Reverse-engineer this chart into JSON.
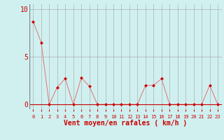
{
  "x": [
    0,
    1,
    2,
    3,
    4,
    5,
    6,
    7,
    8,
    9,
    10,
    11,
    12,
    13,
    14,
    15,
    16,
    17,
    18,
    19,
    20,
    21,
    22,
    23
  ],
  "y": [
    8.7,
    6.5,
    0.0,
    1.8,
    2.7,
    0.0,
    2.8,
    1.9,
    0.0,
    0.0,
    0.0,
    0.0,
    0.0,
    0.0,
    2.0,
    2.0,
    2.7,
    0.0,
    0.0,
    0.0,
    0.0,
    0.0,
    2.0,
    0.0
  ],
  "line_color": "#e08080",
  "marker_color": "#cc0000",
  "bg_color": "#d0f0f0",
  "grid_color": "#b0b0b0",
  "xlabel": "Vent moyen/en rafales ( km/h )",
  "xlabel_color": "#cc0000",
  "tick_color": "#cc0000",
  "yticks": [
    0,
    5,
    10
  ],
  "ylim": [
    -0.5,
    10.5
  ],
  "xlim": [
    -0.5,
    23.5
  ]
}
